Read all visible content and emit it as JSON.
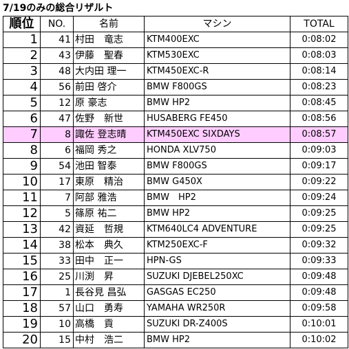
{
  "title": "7/19のみの総合リザルト",
  "headers": {
    "rank": "順位",
    "no": "NO.",
    "name": "名前",
    "machine": "マシン",
    "total": "TOTAL"
  },
  "highlight_color": "#ffccff",
  "rows": [
    {
      "rank": "1",
      "no": "41",
      "name": "村田　竜志",
      "machine": "KTM400EXC",
      "total": "0:08:02"
    },
    {
      "rank": "2",
      "no": "43",
      "name": "伊藤　聖春",
      "machine": "KTM530EXC",
      "total": "0:08:03"
    },
    {
      "rank": "3",
      "no": "48",
      "name": "大内田 理一",
      "machine": "KTM450EXC-R",
      "total": "0:08:14"
    },
    {
      "rank": "4",
      "no": "56",
      "name": "前田 啓介",
      "machine": "BMW F800GS",
      "total": "0:08:23"
    },
    {
      "rank": "5",
      "no": "12",
      "name": "原 豪志",
      "machine": "BMW HP2",
      "total": "0:08:45"
    },
    {
      "rank": "6",
      "no": "47",
      "name": "佐野　新世",
      "machine": "HUSABERG FE450",
      "total": "0:08:56"
    },
    {
      "rank": "7",
      "no": "8",
      "name": "諏佐 登志晴",
      "machine": "KTM450EXC SIXDAYS",
      "total": "0:08:57",
      "highlight": true
    },
    {
      "rank": "8",
      "no": "6",
      "name": "福岡 秀之",
      "machine": "HONDA XLV750",
      "total": "0:09:03"
    },
    {
      "rank": "9",
      "no": "54",
      "name": "池田 智泰",
      "machine": "BMW F800GS",
      "total": "0:09:17"
    },
    {
      "rank": "10",
      "no": "17",
      "name": "東原　精治",
      "machine": "BMW G450X",
      "total": "0:09:22"
    },
    {
      "rank": "11",
      "no": "7",
      "name": "阿部 雅浩",
      "machine": "BMW　HP2",
      "total": "0:09:24"
    },
    {
      "rank": "12",
      "no": "5",
      "name": "篠原 祐二",
      "machine": "BMW HP2",
      "total": "0:09:25"
    },
    {
      "rank": "13",
      "no": "42",
      "name": "資延　哲規",
      "machine": "KTM640LC4 ADVENTURE",
      "total": "0:09:25"
    },
    {
      "rank": "14",
      "no": "38",
      "name": "松本　典久",
      "machine": "KTM250EXC-F",
      "total": "0:09:32"
    },
    {
      "rank": "15",
      "no": "33",
      "name": "田中　正一",
      "machine": "HPN-GS",
      "total": "0:09:33"
    },
    {
      "rank": "16",
      "no": "25",
      "name": "川渕　昇",
      "machine": "SUZUKI DJEBEL250XC",
      "total": "0:09:48"
    },
    {
      "rank": "17",
      "no": "1",
      "name": "長谷見 昌弘",
      "machine": "GASGAS EC250",
      "total": "0:09:48"
    },
    {
      "rank": "18",
      "no": "57",
      "name": "山口　勇寿",
      "machine": "YAMAHA WR250R",
      "total": "0:09:58"
    },
    {
      "rank": "19",
      "no": "10",
      "name": "高橋　貢",
      "machine": "SUZUKI DR-Z400S",
      "total": "0:10:01"
    },
    {
      "rank": "20",
      "no": "15",
      "name": "中村　浩二",
      "machine": "BMW HP2",
      "total": "0:10:02"
    }
  ]
}
